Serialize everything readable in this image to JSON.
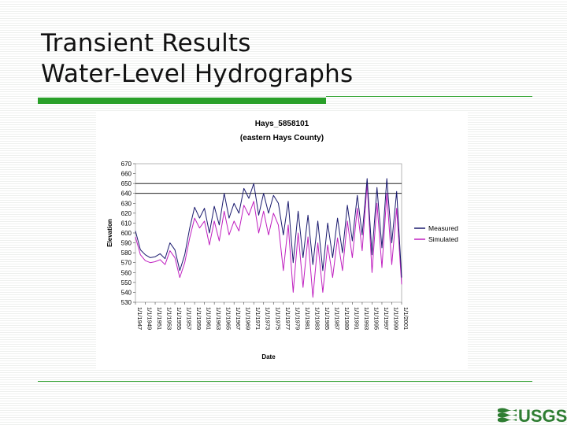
{
  "slide": {
    "title_line1": "Transient Results",
    "title_line2": "Water-Level Hydrographs"
  },
  "logo": {
    "text": "USGS"
  },
  "colors": {
    "accent_green": "#2aa02a",
    "measured": "#1a1a6e",
    "simulated": "#c020c0"
  },
  "chart_data": {
    "type": "line",
    "title": "Hays_5858101",
    "subtitle": "(eastern Hays County)",
    "xlabel": "Date",
    "ylabel": "Elevation",
    "ylim": [
      530,
      670
    ],
    "yticks": [
      530,
      540,
      550,
      560,
      570,
      580,
      590,
      600,
      610,
      620,
      630,
      640,
      650,
      660,
      670
    ],
    "xlim": [
      "1/1/1947",
      "1/1/2001"
    ],
    "xticks": [
      "1/1/1947",
      "1/1/1949",
      "1/1/1951",
      "1/1/1953",
      "1/1/1955",
      "1/1/1957",
      "1/1/1959",
      "1/1/1961",
      "1/1/1963",
      "1/1/1965",
      "1/1/1967",
      "1/1/1969",
      "1/1/1971",
      "1/1/1973",
      "1/1/1975",
      "1/1/1977",
      "1/1/1979",
      "1/1/1981",
      "1/1/1983",
      "1/1/1985",
      "1/1/1987",
      "1/1/1989",
      "1/1/1991",
      "1/1/1993",
      "1/1/1995",
      "1/1/1997",
      "1/1/1999",
      "1/1/2001"
    ],
    "reference_lines": [
      650,
      640
    ],
    "grid": false,
    "legend": "right",
    "series": [
      {
        "name": "Measured",
        "color": "#1a1a6e",
        "x": [
          "1/1/1947",
          "1/1/1948",
          "1/1/1949",
          "1/1/1950",
          "1/1/1951",
          "1/1/1952",
          "1/1/1953",
          "1/1/1954",
          "1/1/1955",
          "1/1/1956",
          "1/1/1957",
          "1/1/1958",
          "1/1/1959",
          "1/1/1960",
          "1/1/1961",
          "1/1/1962",
          "1/1/1963",
          "1/1/1964",
          "1/1/1965",
          "1/1/1966",
          "1/1/1967",
          "1/1/1968",
          "1/1/1969",
          "1/1/1970",
          "1/1/1971",
          "1/1/1972",
          "1/1/1973",
          "1/1/1974",
          "1/1/1975",
          "1/1/1976",
          "1/1/1977",
          "1/1/1978",
          "1/1/1979",
          "1/1/1980",
          "1/1/1981",
          "1/1/1982",
          "1/1/1983",
          "1/1/1984",
          "1/1/1985",
          "1/1/1986",
          "1/1/1987",
          "1/1/1988",
          "1/1/1989",
          "1/1/1990",
          "1/1/1991",
          "1/1/1992",
          "1/1/1993",
          "1/1/1994",
          "1/1/1995",
          "1/1/1996",
          "1/1/1997",
          "1/1/1998",
          "1/1/1999",
          "1/1/2000",
          "1/1/2001"
        ],
        "values": [
          602,
          583,
          578,
          575,
          576,
          579,
          574,
          590,
          583,
          562,
          578,
          605,
          626,
          615,
          625,
          600,
          627,
          608,
          640,
          615,
          630,
          620,
          645,
          635,
          650,
          618,
          640,
          620,
          638,
          630,
          598,
          632,
          570,
          622,
          575,
          618,
          568,
          612,
          562,
          610,
          575,
          615,
          580,
          628,
          592,
          638,
          598,
          655,
          578,
          646,
          585,
          655,
          590,
          642,
          555
        ]
      },
      {
        "name": "Simulated",
        "color": "#c020c0",
        "x": [
          "1/1/1947",
          "1/1/1948",
          "1/1/1949",
          "1/1/1950",
          "1/1/1951",
          "1/1/1952",
          "1/1/1953",
          "1/1/1954",
          "1/1/1955",
          "1/1/1956",
          "1/1/1957",
          "1/1/1958",
          "1/1/1959",
          "1/1/1960",
          "1/1/1961",
          "1/1/1962",
          "1/1/1963",
          "1/1/1964",
          "1/1/1965",
          "1/1/1966",
          "1/1/1967",
          "1/1/1968",
          "1/1/1969",
          "1/1/1970",
          "1/1/1971",
          "1/1/1972",
          "1/1/1973",
          "1/1/1974",
          "1/1/1975",
          "1/1/1976",
          "1/1/1977",
          "1/1/1978",
          "1/1/1979",
          "1/1/1980",
          "1/1/1981",
          "1/1/1982",
          "1/1/1983",
          "1/1/1984",
          "1/1/1985",
          "1/1/1986",
          "1/1/1987",
          "1/1/1988",
          "1/1/1989",
          "1/1/1990",
          "1/1/1991",
          "1/1/1992",
          "1/1/1993",
          "1/1/1994",
          "1/1/1995",
          "1/1/1996",
          "1/1/1997",
          "1/1/1998",
          "1/1/1999",
          "1/1/2000",
          "1/1/2001"
        ],
        "values": [
          596,
          578,
          572,
          570,
          571,
          573,
          568,
          582,
          575,
          555,
          570,
          595,
          615,
          605,
          612,
          588,
          612,
          592,
          622,
          598,
          612,
          602,
          628,
          618,
          632,
          600,
          622,
          598,
          620,
          608,
          562,
          608,
          540,
          600,
          545,
          596,
          535,
          590,
          540,
          588,
          555,
          595,
          562,
          612,
          575,
          625,
          582,
          650,
          560,
          630,
          565,
          640,
          568,
          625,
          548
        ]
      }
    ]
  }
}
